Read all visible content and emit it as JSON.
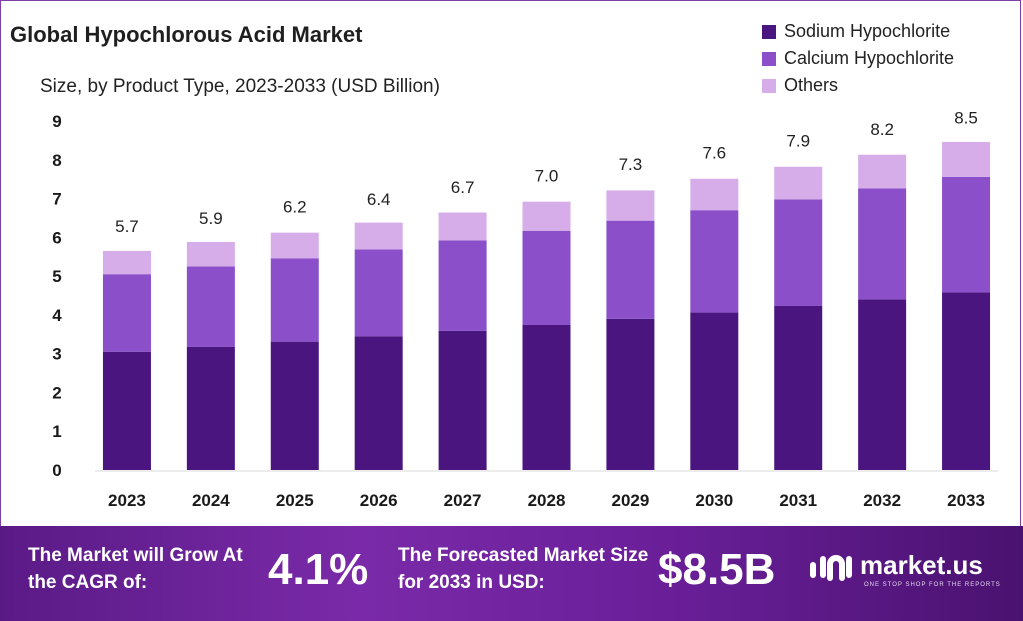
{
  "chart_data": {
    "type": "bar",
    "stacked": true,
    "title": "Global Hypochlorous Acid Market",
    "subtitle": "Size, by Product Type, 2023-2033 (USD Billion)",
    "categories": [
      "2023",
      "2024",
      "2025",
      "2026",
      "2027",
      "2028",
      "2029",
      "2030",
      "2031",
      "2032",
      "2033"
    ],
    "series": [
      {
        "name": "Sodium Hypochlorite",
        "color": "#4b1580",
        "values": [
          3.05,
          3.18,
          3.31,
          3.45,
          3.59,
          3.74,
          3.9,
          4.06,
          4.23,
          4.4,
          4.58
        ]
      },
      {
        "name": "Calcium Hypochlorite",
        "color": "#8a4fc9",
        "values": [
          2.0,
          2.07,
          2.15,
          2.24,
          2.33,
          2.43,
          2.53,
          2.64,
          2.75,
          2.86,
          2.98
        ]
      },
      {
        "name": "Others",
        "color": "#d6ade9",
        "values": [
          0.6,
          0.63,
          0.66,
          0.69,
          0.72,
          0.75,
          0.78,
          0.81,
          0.84,
          0.87,
          0.9
        ]
      }
    ],
    "totals": [
      "5.7",
      "5.9",
      "6.2",
      "6.4",
      "6.7",
      "7.0",
      "7.3",
      "7.6",
      "7.9",
      "8.2",
      "8.5"
    ],
    "ylim": [
      0,
      9
    ],
    "yticks": [
      "0",
      "1",
      "2",
      "3",
      "4",
      "5",
      "6",
      "7",
      "8",
      "9"
    ],
    "grid": false,
    "legend_position": "top-right"
  },
  "banner": {
    "cagr_text": "The Market will Grow At the CAGR of:",
    "cagr_value": "4.1%",
    "forecast_text": "The Forecasted Market Size for 2033 in USD:",
    "forecast_value": "$8.5B"
  },
  "brand": {
    "name": "market.us",
    "tagline": "ONE STOP SHOP FOR THE REPORTS",
    "icon": "market-us-logo-icon"
  }
}
